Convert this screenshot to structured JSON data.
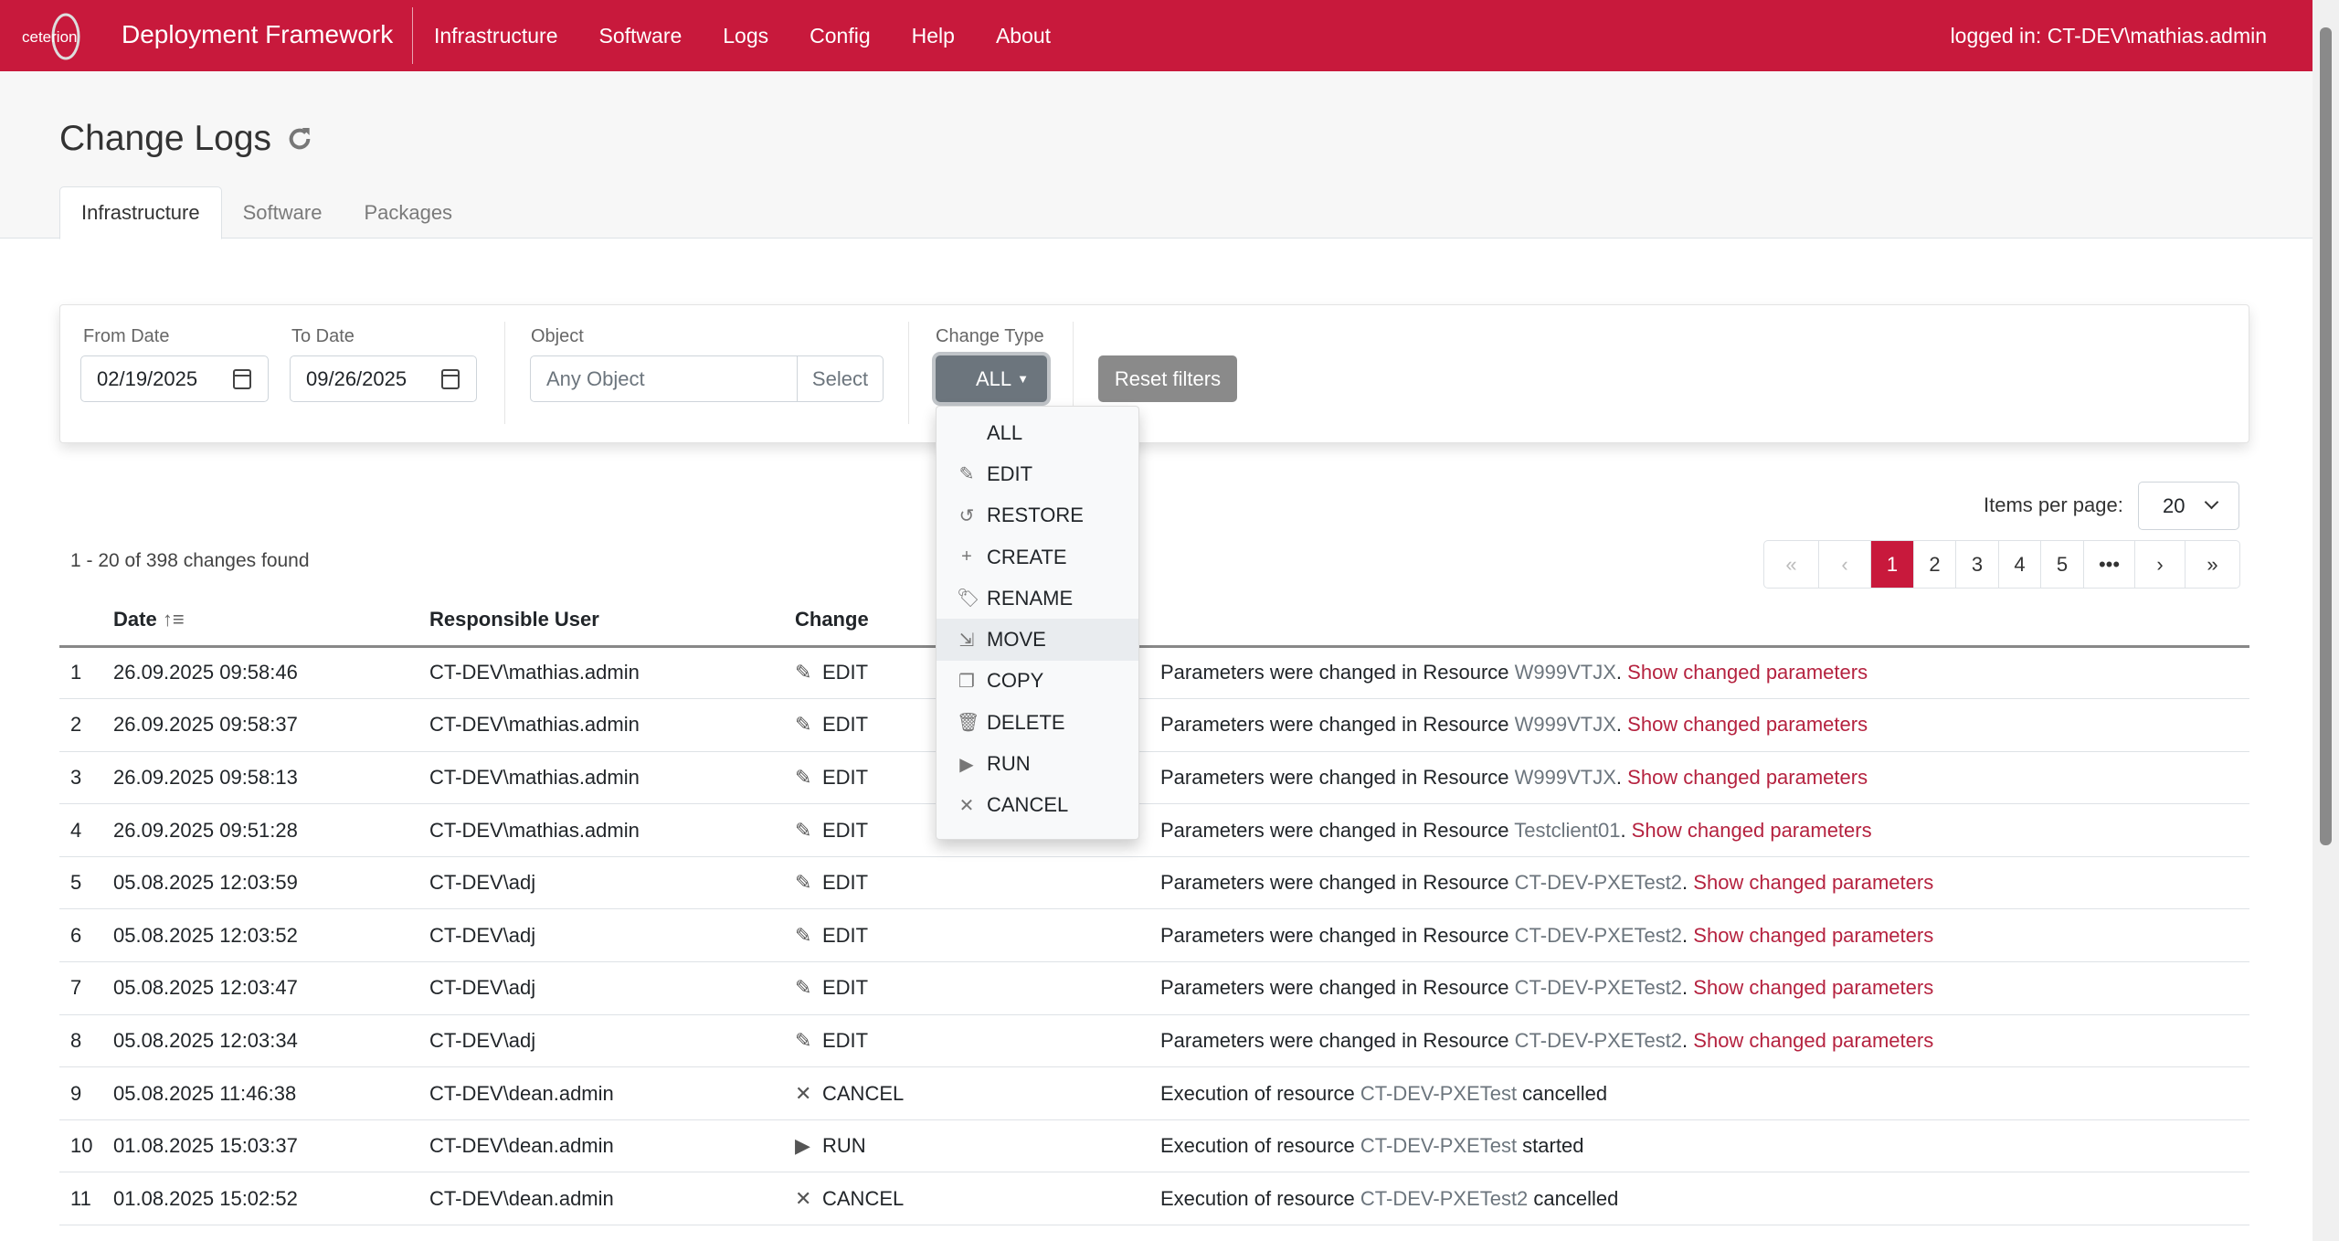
{
  "navbar": {
    "logo_text": "ceterion",
    "brand": "Deployment Framework",
    "links": [
      "Infrastructure",
      "Software",
      "Logs",
      "Config",
      "Help",
      "About"
    ],
    "login": "logged in: CT-DEV\\mathias.admin",
    "color": "#c8193c"
  },
  "page": {
    "title": "Change Logs",
    "tabs": [
      "Infrastructure",
      "Software",
      "Packages"
    ],
    "active_tab": "Infrastructure"
  },
  "filters": {
    "from_label": "From Date",
    "from_value": "02/19/2025",
    "to_label": "To Date",
    "to_value": "09/26/2025",
    "object_label": "Object",
    "object_placeholder": "Any Object",
    "select_label": "Select",
    "change_type_label": "Change Type",
    "change_type_value": "ALL",
    "reset_label": "Reset filters"
  },
  "dropdown": {
    "items": [
      {
        "label": "ALL",
        "icon": ""
      },
      {
        "label": "EDIT",
        "icon": "pencil-icon"
      },
      {
        "label": "RESTORE",
        "icon": "history-icon"
      },
      {
        "label": "CREATE",
        "icon": "plus-icon"
      },
      {
        "label": "RENAME",
        "icon": "tag-icon"
      },
      {
        "label": "MOVE",
        "icon": "file-move-icon"
      },
      {
        "label": "COPY",
        "icon": "copy-icon"
      },
      {
        "label": "DELETE",
        "icon": "trash-icon"
      },
      {
        "label": "RUN",
        "icon": "play-icon"
      },
      {
        "label": "CANCEL",
        "icon": "x-icon"
      }
    ],
    "highlighted": "MOVE"
  },
  "results": {
    "count_text": "1 - 20 of 398 changes found",
    "items_per_page_label": "Items per page:",
    "items_per_page": "20",
    "pages": [
      "«",
      "‹",
      "1",
      "2",
      "3",
      "4",
      "5",
      "•••",
      "›",
      "»"
    ],
    "current_page": "1"
  },
  "table": {
    "headers": [
      "",
      "Date",
      "Responsible User",
      "Change",
      ""
    ],
    "rows": [
      {
        "n": "1",
        "date": "26.09.2025 09:58:46",
        "user": "CT-DEV\\mathias.admin",
        "change": "EDIT",
        "icon": "pencil-icon",
        "pre": "Parameters were changed in Resource ",
        "obj": "W999VTJX",
        "post": ". ",
        "link": "Show changed parameters"
      },
      {
        "n": "2",
        "date": "26.09.2025 09:58:37",
        "user": "CT-DEV\\mathias.admin",
        "change": "EDIT",
        "icon": "pencil-icon",
        "pre": "Parameters were changed in Resource ",
        "obj": "W999VTJX",
        "post": ". ",
        "link": "Show changed parameters"
      },
      {
        "n": "3",
        "date": "26.09.2025 09:58:13",
        "user": "CT-DEV\\mathias.admin",
        "change": "EDIT",
        "icon": "pencil-icon",
        "pre": "Parameters were changed in Resource ",
        "obj": "W999VTJX",
        "post": ". ",
        "link": "Show changed parameters"
      },
      {
        "n": "4",
        "date": "26.09.2025 09:51:28",
        "user": "CT-DEV\\mathias.admin",
        "change": "EDIT",
        "icon": "pencil-icon",
        "pre": "Parameters were changed in Resource ",
        "obj": "Testclient01",
        "post": ". ",
        "link": "Show changed parameters"
      },
      {
        "n": "5",
        "date": "05.08.2025 12:03:59",
        "user": "CT-DEV\\adj",
        "change": "EDIT",
        "icon": "pencil-icon",
        "pre": "Parameters were changed in Resource ",
        "obj": "CT-DEV-PXETest2",
        "post": ". ",
        "link": "Show changed parameters"
      },
      {
        "n": "6",
        "date": "05.08.2025 12:03:52",
        "user": "CT-DEV\\adj",
        "change": "EDIT",
        "icon": "pencil-icon",
        "pre": "Parameters were changed in Resource ",
        "obj": "CT-DEV-PXETest2",
        "post": ". ",
        "link": "Show changed parameters"
      },
      {
        "n": "7",
        "date": "05.08.2025 12:03:47",
        "user": "CT-DEV\\adj",
        "change": "EDIT",
        "icon": "pencil-icon",
        "pre": "Parameters were changed in Resource ",
        "obj": "CT-DEV-PXETest2",
        "post": ". ",
        "link": "Show changed parameters"
      },
      {
        "n": "8",
        "date": "05.08.2025 12:03:34",
        "user": "CT-DEV\\adj",
        "change": "EDIT",
        "icon": "pencil-icon",
        "pre": "Parameters were changed in Resource ",
        "obj": "CT-DEV-PXETest2",
        "post": ". ",
        "link": "Show changed parameters"
      },
      {
        "n": "9",
        "date": "05.08.2025 11:46:38",
        "user": "CT-DEV\\dean.admin",
        "change": "CANCEL",
        "icon": "x-icon",
        "pre": "Execution of resource ",
        "obj": "CT-DEV-PXETest",
        "post": " cancelled",
        "link": ""
      },
      {
        "n": "10",
        "date": "01.08.2025 15:03:37",
        "user": "CT-DEV\\dean.admin",
        "change": "RUN",
        "icon": "play-icon",
        "pre": "Execution of resource ",
        "obj": "CT-DEV-PXETest",
        "post": " started",
        "link": ""
      },
      {
        "n": "11",
        "date": "01.08.2025 15:02:52",
        "user": "CT-DEV\\dean.admin",
        "change": "CANCEL",
        "icon": "x-icon",
        "pre": "Execution of resource ",
        "obj": "CT-DEV-PXETest2",
        "post": " cancelled",
        "link": ""
      }
    ]
  }
}
